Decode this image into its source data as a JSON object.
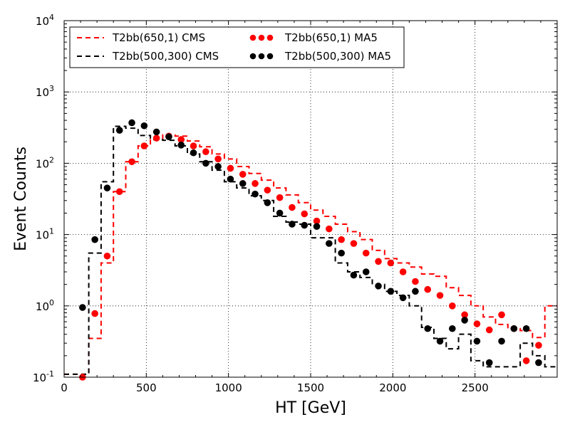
{
  "chart_data": {
    "type": "line",
    "title": "",
    "xlabel": "HT [GeV]",
    "ylabel": "Event Counts",
    "xlim": [
      0,
      3000
    ],
    "ylim": [
      0.1,
      10000
    ],
    "y_scale": "log",
    "grid": true,
    "legend_position": "top-left",
    "x_ticks": [
      {
        "value": 0,
        "label": "0"
      },
      {
        "value": 500,
        "label": "500"
      },
      {
        "value": 1000,
        "label": "1000"
      },
      {
        "value": 1500,
        "label": "1500"
      },
      {
        "value": 2000,
        "label": "2000"
      },
      {
        "value": 2500,
        "label": "2500"
      }
    ],
    "y_ticks": [
      {
        "value": 0.1,
        "base": "10",
        "exp": "-1"
      },
      {
        "value": 1,
        "base": "10",
        "exp": "0"
      },
      {
        "value": 10,
        "base": "10",
        "exp": "1"
      },
      {
        "value": 100,
        "base": "10",
        "exp": "2"
      },
      {
        "value": 1000,
        "base": "10",
        "exp": "3"
      },
      {
        "value": 10000,
        "base": "10",
        "exp": "4"
      }
    ],
    "bin_edges": [
      0,
      75,
      150,
      225,
      300,
      375,
      450,
      525,
      600,
      675,
      750,
      825,
      900,
      975,
      1050,
      1125,
      1200,
      1275,
      1350,
      1425,
      1500,
      1575,
      1650,
      1725,
      1800,
      1875,
      1950,
      2025,
      2100,
      2175,
      2250,
      2325,
      2400,
      2475,
      2550,
      2625,
      2700,
      2775,
      2850,
      2925,
      3000
    ],
    "series": [
      {
        "name": "T2bb(650,1) CMS",
        "kind": "step",
        "color": "#ff0000",
        "values": [
          0.11,
          0.11,
          0.35,
          4.0,
          40,
          105,
          175,
          215,
          250,
          240,
          205,
          170,
          135,
          115,
          90,
          72,
          58,
          45,
          36,
          28,
          22,
          18,
          14,
          11,
          8.5,
          6.0,
          4.6,
          4.0,
          3.5,
          2.8,
          2.6,
          1.8,
          1.4,
          1.0,
          0.7,
          0.55,
          0.48,
          0.45,
          0.36,
          1.0
        ]
      },
      {
        "name": "T2bb(500,300) CMS",
        "kind": "step",
        "color": "#000000",
        "values": [
          0.11,
          0.11,
          5.5,
          55,
          330,
          310,
          245,
          215,
          210,
          175,
          135,
          105,
          80,
          55,
          45,
          35,
          30,
          18,
          15,
          14,
          9,
          9,
          4.0,
          3.0,
          2.5,
          2.0,
          1.6,
          1.4,
          1.0,
          0.5,
          0.35,
          0.25,
          0.4,
          0.17,
          0.14,
          0.14,
          0.14,
          0.3,
          0.2,
          0.14
        ]
      },
      {
        "name": "T2bb(650,1) MA5",
        "kind": "markers",
        "color": "#ff0000",
        "x": [
          112,
          187,
          262,
          337,
          412,
          487,
          562,
          637,
          712,
          787,
          862,
          937,
          1012,
          1087,
          1162,
          1237,
          1312,
          1387,
          1462,
          1537,
          1612,
          1687,
          1762,
          1837,
          1912,
          1987,
          2062,
          2137,
          2212,
          2287,
          2362,
          2437,
          2512,
          2587,
          2662,
          2737,
          2812,
          2887
        ],
        "y": [
          0.1,
          0.78,
          5.0,
          40,
          105,
          175,
          225,
          240,
          215,
          175,
          145,
          115,
          85,
          70,
          52,
          42,
          33,
          24,
          19.5,
          15.5,
          12,
          8.5,
          7.5,
          5.5,
          4.2,
          4.0,
          3.0,
          2.2,
          1.7,
          1.4,
          1.0,
          0.75,
          0.56,
          0.46,
          0.75,
          0.48,
          0.17,
          0.28
        ]
      },
      {
        "name": "T2bb(500,300) MA5",
        "kind": "markers",
        "color": "#000000",
        "x": [
          112,
          187,
          262,
          337,
          412,
          487,
          562,
          637,
          712,
          787,
          862,
          937,
          1012,
          1087,
          1162,
          1237,
          1312,
          1387,
          1462,
          1537,
          1612,
          1687,
          1762,
          1837,
          1912,
          1987,
          2062,
          2137,
          2212,
          2287,
          2362,
          2437,
          2512,
          2587,
          2662,
          2737,
          2812,
          2887
        ],
        "y": [
          0.95,
          8.5,
          45,
          290,
          370,
          335,
          275,
          235,
          180,
          140,
          100,
          90,
          60,
          52,
          37,
          28,
          20,
          14,
          13.5,
          13,
          7.5,
          5.5,
          2.7,
          3.0,
          1.9,
          1.6,
          1.3,
          1.6,
          0.48,
          0.32,
          0.48,
          0.63,
          0.32,
          0.16,
          0.32,
          0.48,
          0.48,
          0.16
        ]
      }
    ]
  }
}
